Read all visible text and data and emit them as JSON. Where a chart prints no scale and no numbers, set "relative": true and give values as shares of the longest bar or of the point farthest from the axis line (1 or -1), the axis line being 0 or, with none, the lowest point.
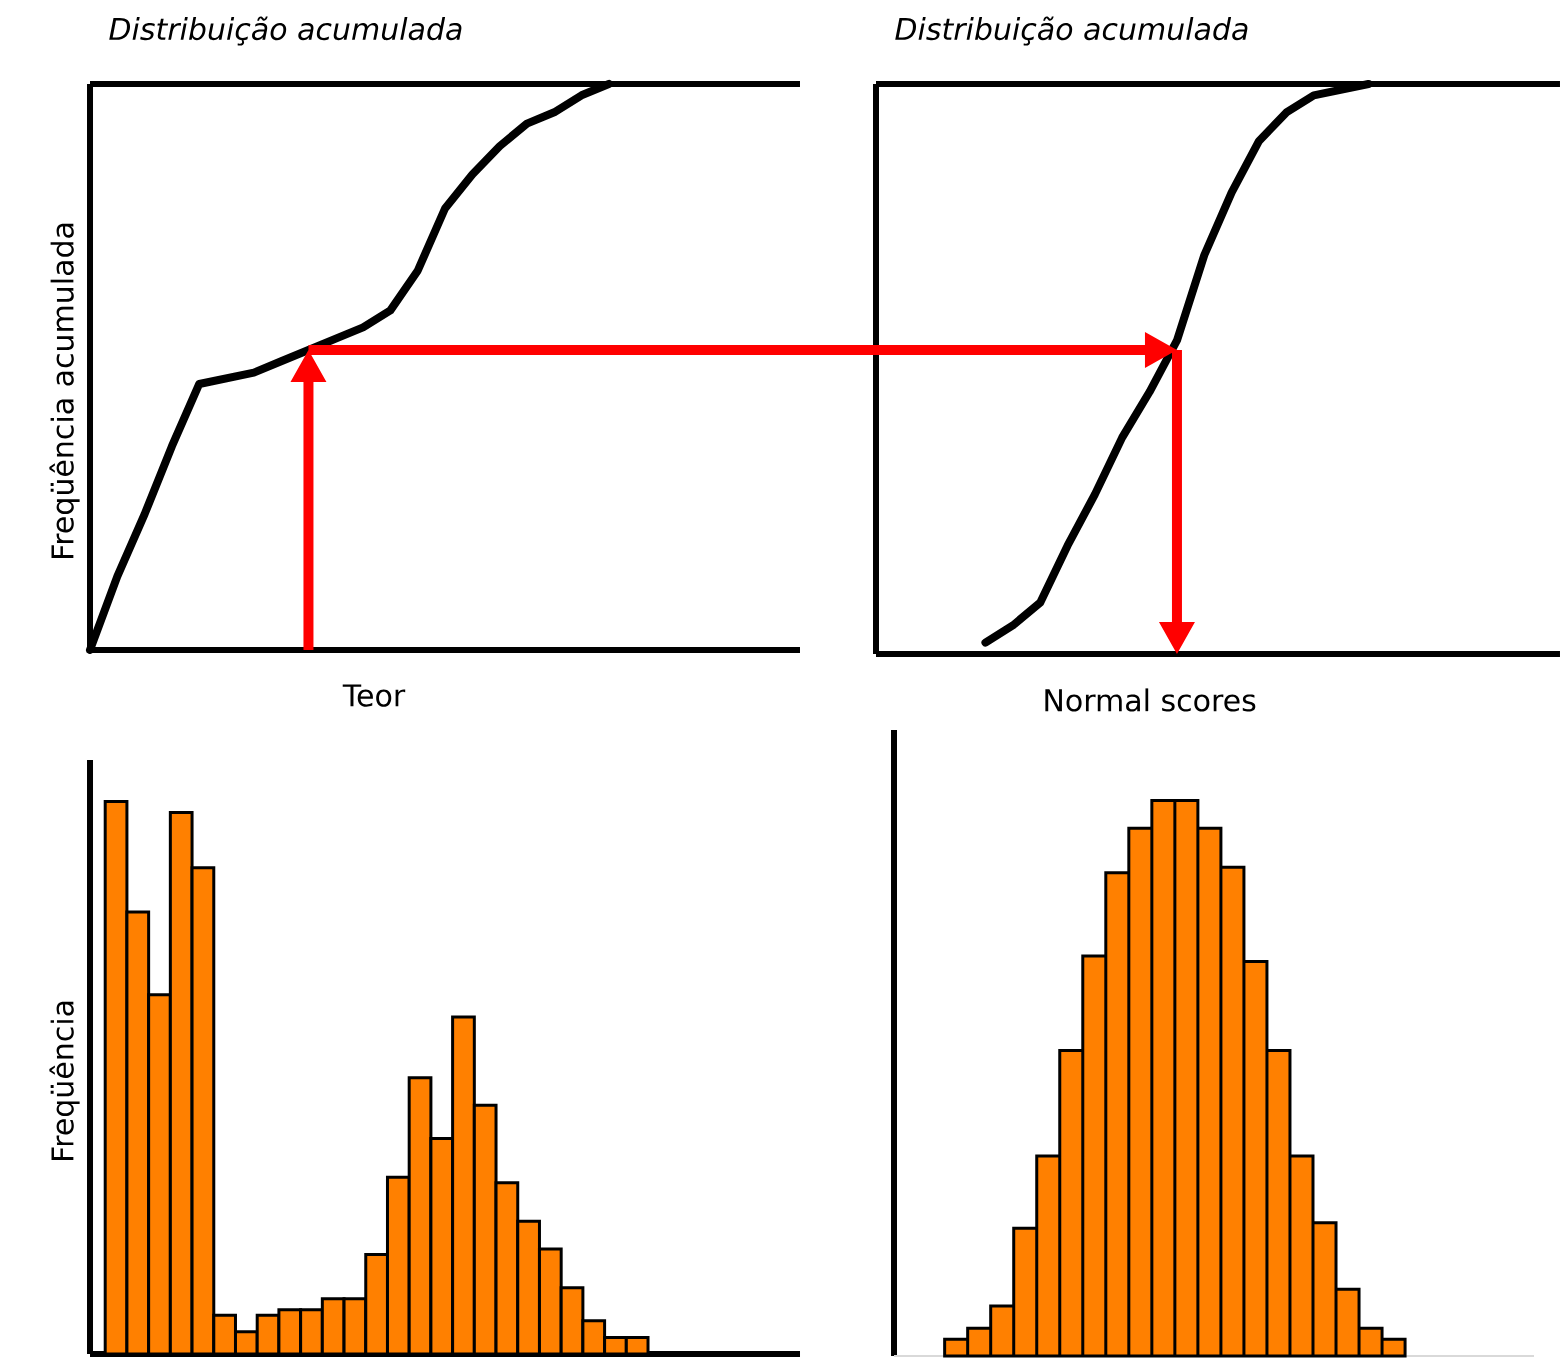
{
  "chart_data": [
    {
      "type": "line",
      "title": "Distribuição acumulada",
      "xlabel": "Teor",
      "ylabel": "Freqüência acumulada",
      "relative": true,
      "color": "#000000",
      "categories": [
        null,
        null,
        null,
        null,
        null,
        null,
        null,
        null,
        null,
        null,
        null,
        null,
        null,
        null,
        null,
        null,
        null,
        null,
        null,
        null,
        null,
        null,
        null,
        null,
        null,
        null,
        null
      ],
      "values": [
        0,
        0.13,
        0.24,
        0.36,
        0.47,
        0.48,
        0.49,
        0.51,
        0.53,
        0.55,
        0.57,
        0.6,
        0.67,
        0.78,
        0.84,
        0.89,
        0.93,
        0.95,
        0.98,
        1,
        null,
        null,
        null,
        null,
        null,
        null,
        null
      ]
    },
    {
      "type": "line",
      "title": "Distribuição acumulada",
      "xlabel": "Normal scores",
      "relative": true,
      "color": "#000000",
      "categories": [
        null,
        null,
        null,
        null,
        null,
        null,
        null,
        null,
        null,
        null,
        null,
        null,
        null,
        null,
        null,
        null,
        null,
        null,
        null,
        null,
        null,
        null,
        null,
        null,
        null,
        null
      ],
      "values": [
        null,
        null,
        null,
        null,
        0.02,
        0.05,
        0.09,
        0.19,
        0.28,
        0.38,
        0.46,
        0.55,
        0.7,
        0.81,
        0.9,
        0.95,
        0.98,
        0.99,
        1,
        null,
        null,
        null,
        null,
        null,
        null,
        null
      ]
    },
    {
      "type": "bar",
      "ylabel": "Freqüência",
      "relative": true,
      "color": "#ff8000",
      "categories": [
        null,
        null,
        null,
        null,
        null,
        null,
        null,
        null,
        null,
        null,
        null,
        null,
        null,
        null,
        null,
        null,
        null,
        null,
        null,
        null,
        null,
        null,
        null,
        null,
        null
      ],
      "values": [
        1,
        0.8,
        0.65,
        0.98,
        0.88,
        0.07,
        0.04,
        0.07,
        0.08,
        0.08,
        0.1,
        0.1,
        0.18,
        0.32,
        0.5,
        0.39,
        0.61,
        0.45,
        0.31,
        0.24,
        0.19,
        0.12,
        0.06,
        0.03,
        0.03
      ]
    },
    {
      "type": "bar",
      "relative": true,
      "color": "#ff8000",
      "categories": [
        null,
        null,
        null,
        null,
        null,
        null,
        null,
        null,
        null,
        null,
        null,
        null,
        null,
        null,
        null,
        null,
        null,
        null,
        null,
        null
      ],
      "values": [
        0.03,
        0.05,
        0.09,
        0.23,
        0.36,
        0.55,
        0.72,
        0.87,
        0.95,
        1,
        1,
        0.95,
        0.88,
        0.71,
        0.55,
        0.36,
        0.24,
        0.12,
        0.05,
        0.03
      ]
    }
  ]
}
